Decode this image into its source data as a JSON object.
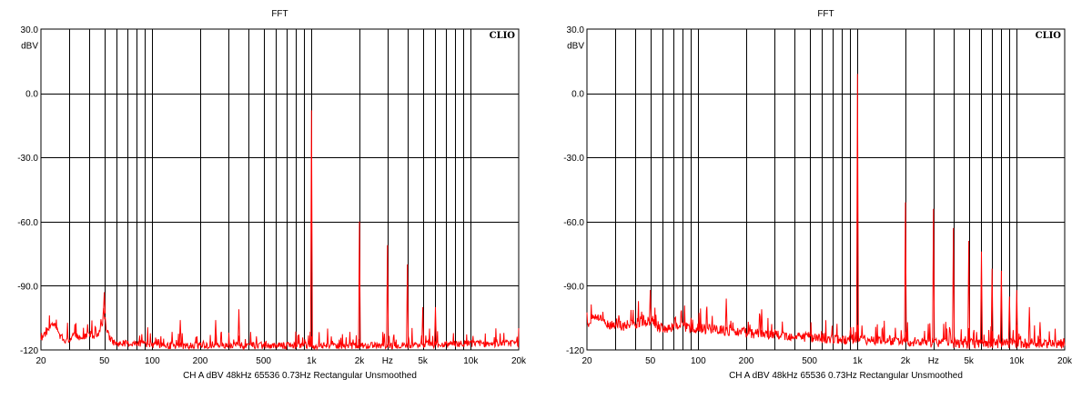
{
  "colors": {
    "trace": "#ff0000",
    "grid": "#000000",
    "background": "#ffffff"
  },
  "chart_data": [
    {
      "type": "line",
      "title": "FFT",
      "ylabel": "dBV",
      "xlabel": "Hz",
      "brand": "CLIO",
      "x_scale": "log",
      "xlim": [
        20,
        20000
      ],
      "ylim": [
        -120,
        30
      ],
      "yticks": [
        "30.0",
        "dBV",
        "0.0",
        "-30.0",
        "-60.0",
        "-90.0",
        "-120"
      ],
      "xticks": [
        "20",
        "50",
        "100",
        "200",
        "500",
        "1k",
        "2k",
        "Hz",
        "5k",
        "10k",
        "20k"
      ],
      "footer": "CH A   dBV   48kHz   65536   0.73Hz   Rectangular   Unsmoothed",
      "grid": true,
      "noise_floor": [
        [
          20,
          -115
        ],
        [
          22,
          -111
        ],
        [
          24,
          -107
        ],
        [
          26,
          -113
        ],
        [
          28,
          -116
        ],
        [
          30,
          -115
        ],
        [
          33,
          -113
        ],
        [
          36,
          -115
        ],
        [
          40,
          -112
        ],
        [
          44,
          -114
        ],
        [
          47,
          -111
        ],
        [
          49,
          -107
        ],
        [
          50,
          -103
        ],
        [
          51,
          -108
        ],
        [
          53,
          -113
        ],
        [
          56,
          -116
        ],
        [
          60,
          -117
        ],
        [
          80,
          -117
        ],
        [
          120,
          -118
        ],
        [
          300,
          -118
        ],
        [
          1000,
          -118
        ],
        [
          3000,
          -118
        ],
        [
          10000,
          -117
        ],
        [
          20000,
          -117
        ]
      ],
      "series": [
        {
          "peaks": [
            [
              50,
              -93
            ],
            [
              150,
              -106
            ],
            [
              250,
              -106
            ],
            [
              350,
              -101
            ],
            [
              1000,
              -8
            ],
            [
              2000,
              -60
            ],
            [
              3000,
              -71
            ],
            [
              4000,
              -80
            ],
            [
              5000,
              -100
            ],
            [
              6000,
              -100
            ]
          ]
        }
      ]
    },
    {
      "type": "line",
      "title": "FFT",
      "ylabel": "dBV",
      "xlabel": "Hz",
      "brand": "CLIO",
      "x_scale": "log",
      "xlim": [
        20,
        20000
      ],
      "ylim": [
        -120,
        30
      ],
      "yticks": [
        "30.0",
        "dBV",
        "0.0",
        "-30.0",
        "-60.0",
        "-90.0",
        "-120"
      ],
      "xticks": [
        "20",
        "50",
        "100",
        "200",
        "500",
        "1k",
        "2k",
        "Hz",
        "5k",
        "10k",
        "20k"
      ],
      "footer": "CH A   dBV   48kHz   65536   0.73Hz   Rectangular   Unsmoothed",
      "grid": true,
      "noise_floor": [
        [
          20,
          -108
        ],
        [
          22,
          -105
        ],
        [
          24,
          -104
        ],
        [
          26,
          -108
        ],
        [
          30,
          -108
        ],
        [
          35,
          -109
        ],
        [
          40,
          -108
        ],
        [
          45,
          -106
        ],
        [
          50,
          -107
        ],
        [
          55,
          -109
        ],
        [
          65,
          -110
        ],
        [
          80,
          -109
        ],
        [
          100,
          -110
        ],
        [
          150,
          -111
        ],
        [
          200,
          -112
        ],
        [
          300,
          -113
        ],
        [
          500,
          -114
        ],
        [
          800,
          -115
        ],
        [
          1000,
          -115
        ],
        [
          2000,
          -116
        ],
        [
          5000,
          -117
        ],
        [
          10000,
          -117
        ],
        [
          20000,
          -117
        ]
      ],
      "series": [
        {
          "peaks": [
            [
              50,
              -92
            ],
            [
              150,
              -96
            ],
            [
              250,
              -101
            ],
            [
              1000,
              9
            ],
            [
              2000,
              -51
            ],
            [
              3000,
              -54
            ],
            [
              4000,
              -63
            ],
            [
              5000,
              -69
            ],
            [
              6000,
              -74
            ],
            [
              7000,
              -82
            ],
            [
              8000,
              -83
            ],
            [
              9000,
              -95
            ],
            [
              10000,
              -92
            ],
            [
              12000,
              -100
            ],
            [
              14000,
              -107
            ]
          ]
        }
      ]
    }
  ]
}
